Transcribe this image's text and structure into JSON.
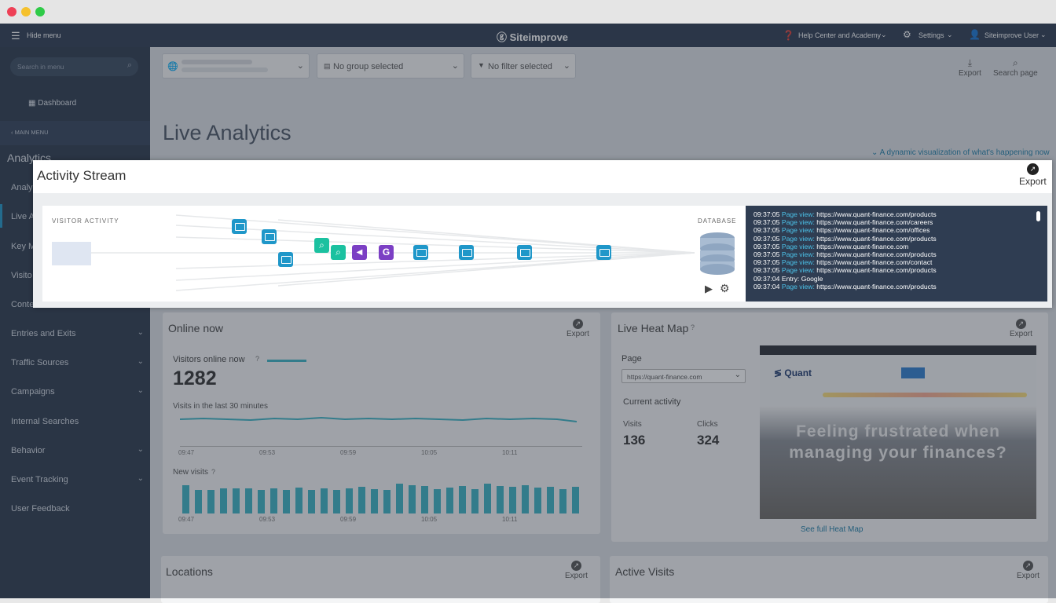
{
  "app": {
    "brand": "Siteimprove",
    "hide_menu": "Hide menu",
    "help": "Help Center and Academy",
    "settings": "Settings",
    "user": "Siteimprove User"
  },
  "sidebar": {
    "search_placeholder": "Search in menu",
    "dashboard": "Dashboard",
    "main_menu": "MAIN MENU",
    "section": "Analytics",
    "items": [
      {
        "label": "Analy",
        "chevron": false
      },
      {
        "label": "Live A",
        "chevron": false
      },
      {
        "label": "Key M",
        "chevron": false
      },
      {
        "label": "Visito",
        "chevron": false
      },
      {
        "label": "Conte",
        "chevron": false
      },
      {
        "label": "Entries and Exits",
        "chevron": true
      },
      {
        "label": "Traffic Sources",
        "chevron": true
      },
      {
        "label": "Campaigns",
        "chevron": true
      },
      {
        "label": "Internal Searches",
        "chevron": false
      },
      {
        "label": "Behavior",
        "chevron": true
      },
      {
        "label": "Event Tracking",
        "chevron": true
      },
      {
        "label": "User Feedback",
        "chevron": false
      }
    ]
  },
  "toolbar": {
    "group": "No group selected",
    "filter": "No filter selected",
    "export": "Export",
    "search_page": "Search page"
  },
  "page": {
    "title": "Live Analytics",
    "subtitle": "A dynamic visualization of what's happening now"
  },
  "activity": {
    "title": "Activity Stream",
    "export": "Export",
    "visitor_label": "VISITOR ACTIVITY",
    "database_label": "DATABASE",
    "log": [
      {
        "time": "09:37:05",
        "type": "Page view:",
        "url": "https://www.quant-finance.com/products"
      },
      {
        "time": "09:37:05",
        "type": "Page view:",
        "url": "https://www.quant-finance.com/careers"
      },
      {
        "time": "09:37:05",
        "type": "Page view:",
        "url": "https://www.quant-finance.com/offices"
      },
      {
        "time": "09:37:05",
        "type": "Page view:",
        "url": "https://www.quant-finance.com/products"
      },
      {
        "time": "09:37:05",
        "type": "Page view:",
        "url": "https://www.quant-finance.com"
      },
      {
        "time": "09:37:05",
        "type": "Page view:",
        "url": "https://www.quant-finance.com/products"
      },
      {
        "time": "09:37:05",
        "type": "Page view:",
        "url": "https://www.quant-finance.com/contact"
      },
      {
        "time": "09:37:05",
        "type": "Page view:",
        "url": "https://www.quant-finance.com/products"
      },
      {
        "time": "09:37:04",
        "type": "Entry:",
        "url": "Google"
      },
      {
        "time": "09:37:04",
        "type": "Page view:",
        "url": "https://www.quant-finance.com/products"
      }
    ]
  },
  "online": {
    "title": "Online now",
    "export": "Export",
    "visitors_label": "Visitors online now",
    "visitors_value": "1282",
    "visits_label": "Visits in the last 30 minutes",
    "new_visits_label": "New visits",
    "ticks": [
      "09:47",
      "09:53",
      "09:59",
      "10:05",
      "10:11"
    ],
    "bar_values": [
      0.95,
      0.8,
      0.78,
      0.83,
      0.83,
      0.85,
      0.78,
      0.85,
      0.8,
      0.86,
      0.8,
      0.83,
      0.78,
      0.83,
      0.9,
      0.82,
      0.78,
      1.0,
      0.95,
      0.92,
      0.82,
      0.86,
      0.92,
      0.82,
      1.0,
      0.92,
      0.9,
      0.95,
      0.86,
      0.9,
      0.82,
      0.9
    ]
  },
  "heatmap": {
    "title": "Live Heat Map",
    "export": "Export",
    "page_label": "Page",
    "page_value": "https://quant-finance.com",
    "current_activity": "Current activity",
    "visits_label": "Visits",
    "visits_value": "136",
    "clicks_label": "Clicks",
    "clicks_value": "324",
    "preview_brand": "Quant",
    "preview_headline": "Feeling frustrated when managing your finances?",
    "link": "See full Heat Map"
  },
  "locations": {
    "title": "Locations",
    "export": "Export"
  },
  "active": {
    "title": "Active Visits",
    "export": "Export"
  },
  "colors": {
    "accent": "#1f97c9",
    "teal": "#3cb4c4",
    "purple": "#7b3fc4",
    "green": "#1bc1a0",
    "sidebar": "#2b394d"
  }
}
